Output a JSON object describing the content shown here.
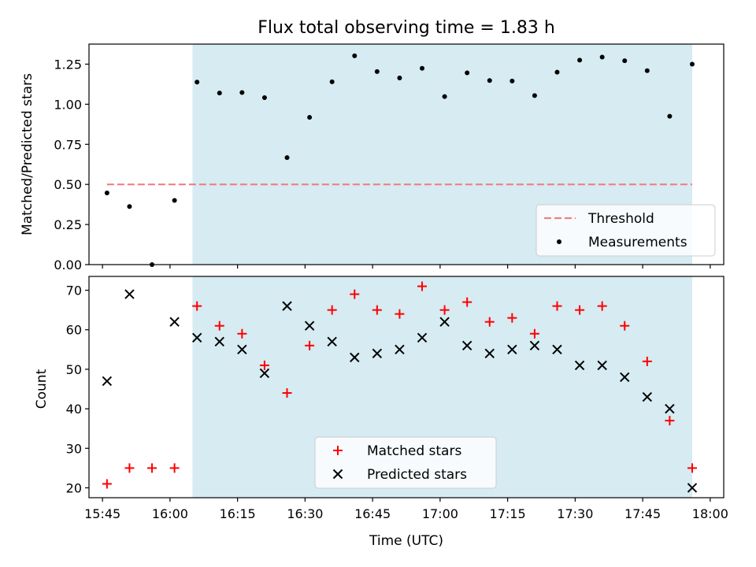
{
  "colors": {
    "threshold": "#f08080",
    "matched": "#ff0000",
    "predicted": "#000000",
    "measurement": "#000000",
    "shade": "#add8e6",
    "shade_alpha": 0.5
  },
  "chart_data": [
    {
      "type": "scatter",
      "title": "Flux total observing time = 1.83 h",
      "xlabel": "",
      "ylabel": "Matched/Predicted stars",
      "xlim": [
        "15:42",
        "18:03"
      ],
      "ylim": [
        0,
        1.375
      ],
      "yticks": [
        0,
        0.25,
        0.5,
        0.75,
        1.0,
        1.25
      ],
      "ytick_labels": [
        "0.00",
        "0.25",
        "0.50",
        "0.75",
        "1.00",
        "1.25"
      ],
      "shaded_span": [
        "16:05",
        "17:56"
      ],
      "threshold": {
        "name": "Threshold",
        "value": 0.5,
        "x_range": [
          "15:46",
          "17:56"
        ]
      },
      "legend": {
        "placement": "lower right",
        "entries": [
          "Threshold",
          "Measurements"
        ]
      },
      "series": [
        {
          "name": "Measurements",
          "x": [
            "15:46",
            "15:51",
            "15:56",
            "16:01",
            "16:06",
            "16:11",
            "16:16",
            "16:21",
            "16:26",
            "16:31",
            "16:36",
            "16:41",
            "16:46",
            "16:51",
            "16:56",
            "17:01",
            "17:06",
            "17:11",
            "17:16",
            "17:21",
            "17:26",
            "17:31",
            "17:36",
            "17:41",
            "17:46",
            "17:51",
            "17:56"
          ],
          "y": [
            0.447,
            0.362,
            0.0,
            0.4,
            1.138,
            1.07,
            1.073,
            1.041,
            0.667,
            0.918,
            1.14,
            1.302,
            1.204,
            1.164,
            1.224,
            1.048,
            1.196,
            1.148,
            1.145,
            1.054,
            1.2,
            1.275,
            1.294,
            1.271,
            1.209,
            0.925,
            1.25
          ]
        }
      ]
    },
    {
      "type": "scatter",
      "title": "",
      "xlabel": "Time (UTC)",
      "ylabel": "Count",
      "xlim": [
        "15:42",
        "18:03"
      ],
      "ylim": [
        17.5,
        73.5
      ],
      "yticks": [
        20,
        30,
        40,
        50,
        60,
        70
      ],
      "xticks": [
        "15:45",
        "16:00",
        "16:15",
        "16:30",
        "16:45",
        "17:00",
        "17:15",
        "17:30",
        "17:45",
        "18:00"
      ],
      "shaded_span": [
        "16:05",
        "17:56"
      ],
      "legend": {
        "placement": "lower center",
        "entries": [
          "Matched stars",
          "Predicted stars"
        ]
      },
      "series": [
        {
          "name": "Matched stars",
          "x": [
            "15:46",
            "15:51",
            "15:56",
            "16:01",
            "16:06",
            "16:11",
            "16:16",
            "16:21",
            "16:26",
            "16:31",
            "16:36",
            "16:41",
            "16:46",
            "16:51",
            "16:56",
            "17:01",
            "17:06",
            "17:11",
            "17:16",
            "17:21",
            "17:26",
            "17:31",
            "17:36",
            "17:41",
            "17:46",
            "17:51",
            "17:56"
          ],
          "y": [
            21,
            25,
            25,
            25,
            66,
            61,
            59,
            51,
            44,
            56,
            65,
            69,
            65,
            64,
            71,
            65,
            67,
            62,
            63,
            59,
            66,
            65,
            66,
            61,
            52,
            37,
            25
          ]
        },
        {
          "name": "Predicted stars",
          "x": [
            "15:46",
            "15:51",
            "16:01",
            "16:06",
            "16:11",
            "16:16",
            "16:21",
            "16:26",
            "16:31",
            "16:36",
            "16:41",
            "16:46",
            "16:51",
            "16:56",
            "17:01",
            "17:06",
            "17:11",
            "17:16",
            "17:21",
            "17:26",
            "17:31",
            "17:36",
            "17:41",
            "17:46",
            "17:51",
            "17:56"
          ],
          "y": [
            47,
            69,
            62,
            58,
            57,
            55,
            49,
            66,
            61,
            57,
            53,
            54,
            55,
            58,
            62,
            56,
            54,
            55,
            56,
            55,
            51,
            51,
            48,
            43,
            40,
            20
          ]
        }
      ]
    }
  ]
}
